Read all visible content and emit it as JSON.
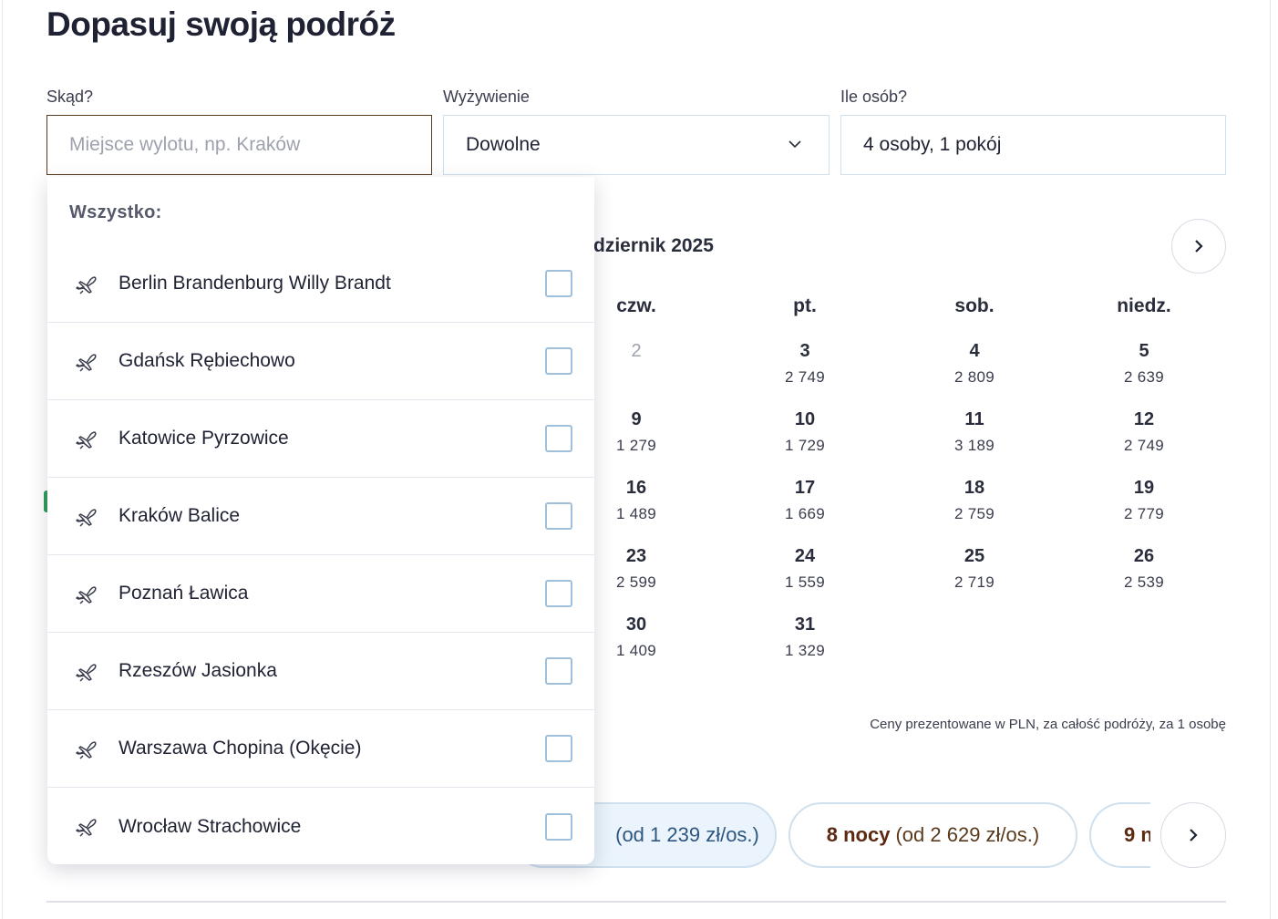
{
  "title": "Dopasuj swoją podróż",
  "fields": {
    "from": {
      "label": "Skąd?",
      "placeholder": "Miejsce wylotu, np. Kraków",
      "value": ""
    },
    "board": {
      "label": "Wyżywienie",
      "value": "Dowolne"
    },
    "people": {
      "label": "Ile osób?",
      "value": "4 osoby, 1 pokój"
    }
  },
  "calendar": {
    "month": "dziernik 2025",
    "weekdays": [
      "czw.",
      "pt.",
      "sob.",
      "niedz."
    ],
    "rows": [
      [
        {
          "d": "2",
          "p": "",
          "muted": true
        },
        {
          "d": "3",
          "p": "2 749"
        },
        {
          "d": "4",
          "p": "2 809"
        },
        {
          "d": "5",
          "p": "2 639"
        }
      ],
      [
        {
          "d": "9",
          "p": "1 279"
        },
        {
          "d": "10",
          "p": "1 729"
        },
        {
          "d": "11",
          "p": "3 189"
        },
        {
          "d": "12",
          "p": "2 749"
        }
      ],
      [
        {
          "d": "16",
          "p": "1 489"
        },
        {
          "d": "17",
          "p": "1 669"
        },
        {
          "d": "18",
          "p": "2 759"
        },
        {
          "d": "19",
          "p": "2 779"
        }
      ],
      [
        {
          "d": "23",
          "p": "2 599"
        },
        {
          "d": "24",
          "p": "1 559"
        },
        {
          "d": "25",
          "p": "2 719"
        },
        {
          "d": "26",
          "p": "2 539"
        }
      ],
      [
        {
          "d": "30",
          "p": "1 409"
        },
        {
          "d": "31",
          "p": "1 329"
        }
      ]
    ],
    "note": "Ceny prezentowane w PLN, za całość podróży, za 1 osobę"
  },
  "nights": [
    {
      "nights": "",
      "price": "(od 1 239 zł/os.)",
      "selected": true
    },
    {
      "nights": "8 nocy",
      "price": "(od 2 629 zł/os.)",
      "selected": false
    },
    {
      "nights": "9 n",
      "price": "",
      "selected": false
    }
  ],
  "dropdown": {
    "header": "Wszystko:",
    "items": [
      "Berlin Brandenburg Willy Brandt",
      "Gdańsk Rębiechowo",
      "Katowice Pyrzowice",
      "Kraków Balice",
      "Poznań Ławica",
      "Rzeszów Jasionka",
      "Warszawa Chopina (Okęcie)",
      "Wrocław Strachowice"
    ]
  },
  "icons": {
    "plane": "plane-icon",
    "chevron": "chevron-down-icon",
    "next": "chevron-right-icon",
    "checkbox": "checkbox"
  }
}
